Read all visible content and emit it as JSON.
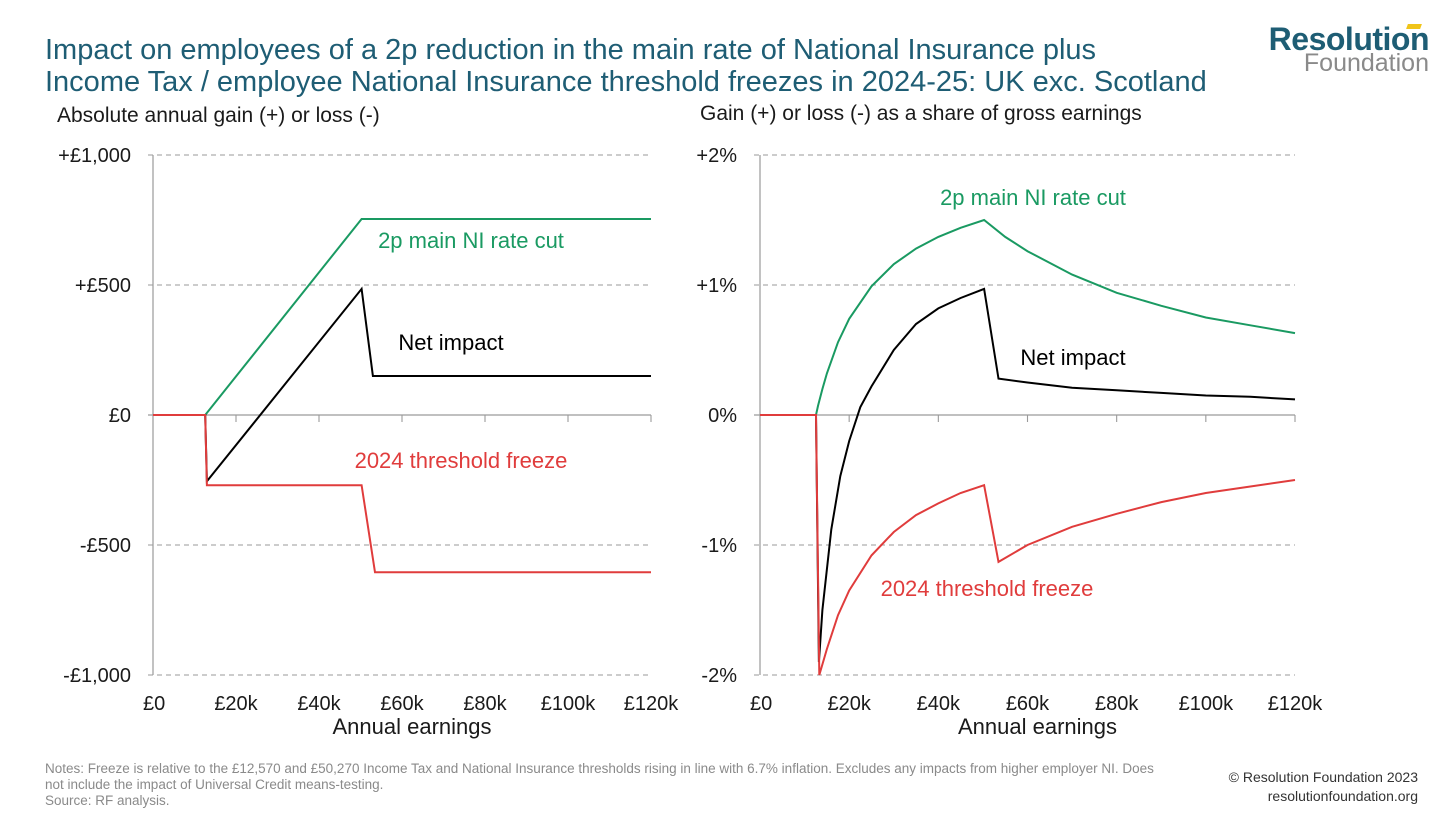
{
  "title_line1": "Impact on employees of a 2p reduction in the main rate of National Insurance plus",
  "title_line2": "Income Tax / employee National Insurance threshold freezes in 2024-25: UK exc. Scotland",
  "logo": {
    "line1": "Resolution",
    "line2": "Foundation",
    "accent_color": "#f0c419"
  },
  "colors": {
    "green": "#1a9a62",
    "black": "#000000",
    "red": "#e03c3c",
    "title": "#1e5d74",
    "grid": "#9a9a9a"
  },
  "footnote": {
    "notes": "Notes: Freeze is relative to the £12,570 and £50,270 Income Tax and National Insurance thresholds rising in line with 6.7% inflation. Excludes any impacts from higher employer NI. Does not include the impact of Universal Credit means-testing.",
    "source": "Source: RF analysis."
  },
  "credit": {
    "line1": "© Resolution Foundation 2023",
    "line2": "resolutionfoundation.org"
  },
  "chart_data": [
    {
      "type": "line",
      "subtitle": "Absolute annual gain (+) or loss (-)",
      "xlabel": "Annual earnings",
      "ylabel": "",
      "xlim": [
        0,
        120000
      ],
      "ylim": [
        -1000,
        1000
      ],
      "xticks": [
        0,
        20000,
        40000,
        60000,
        80000,
        100000,
        120000
      ],
      "xtick_labels": [
        "£0",
        "£20k",
        "£40k",
        "£60k",
        "£80k",
        "£100k",
        "£120k"
      ],
      "yticks": [
        1000,
        500,
        0,
        -500,
        -1000
      ],
      "ytick_labels": [
        "+£1,000",
        "+£500",
        "£0",
        "-£500",
        "-£1,000"
      ],
      "grid": "horizontal dashed",
      "series": [
        {
          "name": "2p main NI rate cut",
          "color_key": "green",
          "points": [
            [
              0,
              0
            ],
            [
              12570,
              0
            ],
            [
              50270,
              754
            ],
            [
              120000,
              754
            ]
          ]
        },
        {
          "name": "Net impact",
          "color_key": "black",
          "points": [
            [
              0,
              0
            ],
            [
              12570,
              0
            ],
            [
              13000,
              -255
            ],
            [
              50270,
              485
            ],
            [
              53000,
              150
            ],
            [
              120000,
              150
            ]
          ]
        },
        {
          "name": "2024 threshold freeze",
          "color_key": "red",
          "points": [
            [
              0,
              0
            ],
            [
              12570,
              0
            ],
            [
              13000,
              -270
            ],
            [
              50270,
              -270
            ],
            [
              53500,
              -605
            ],
            [
              120000,
              -605
            ]
          ]
        }
      ]
    },
    {
      "type": "line",
      "subtitle": "Gain (+) or loss (-) as a share of gross earnings",
      "xlabel": "Annual earnings",
      "ylabel": "",
      "xlim": [
        0,
        120000
      ],
      "ylim": [
        -2,
        2
      ],
      "xticks": [
        0,
        20000,
        40000,
        60000,
        80000,
        100000,
        120000
      ],
      "xtick_labels": [
        "£0",
        "£20k",
        "£40k",
        "£60k",
        "£80k",
        "£100k",
        "£120k"
      ],
      "yticks": [
        2,
        1,
        0,
        -1,
        -2
      ],
      "ytick_labels": [
        "+2%",
        "+1%",
        "0%",
        "-1%",
        "-2%"
      ],
      "grid": "horizontal dashed",
      "series": [
        {
          "name": "2p main NI rate cut",
          "color_key": "green",
          "points": [
            [
              0,
              0
            ],
            [
              12570,
              0
            ],
            [
              13000,
              0.07
            ],
            [
              14000,
              0.2
            ],
            [
              15000,
              0.32
            ],
            [
              17500,
              0.56
            ],
            [
              20000,
              0.74
            ],
            [
              25000,
              0.99
            ],
            [
              30000,
              1.16
            ],
            [
              35000,
              1.28
            ],
            [
              40000,
              1.37
            ],
            [
              45000,
              1.44
            ],
            [
              50270,
              1.5
            ],
            [
              55000,
              1.37
            ],
            [
              60000,
              1.26
            ],
            [
              70000,
              1.08
            ],
            [
              80000,
              0.94
            ],
            [
              90000,
              0.84
            ],
            [
              100000,
              0.75
            ],
            [
              110000,
              0.69
            ],
            [
              120000,
              0.63
            ]
          ]
        },
        {
          "name": "Net impact",
          "color_key": "black",
          "points": [
            [
              0,
              0
            ],
            [
              12570,
              0
            ],
            [
              13200,
              -1.9
            ],
            [
              14000,
              -1.5
            ],
            [
              16000,
              -0.88
            ],
            [
              18000,
              -0.47
            ],
            [
              20000,
              -0.2
            ],
            [
              22500,
              0.06
            ],
            [
              25000,
              0.22
            ],
            [
              30000,
              0.5
            ],
            [
              35000,
              0.7
            ],
            [
              40000,
              0.82
            ],
            [
              45000,
              0.9
            ],
            [
              50270,
              0.97
            ],
            [
              53500,
              0.28
            ],
            [
              60000,
              0.25
            ],
            [
              70000,
              0.21
            ],
            [
              80000,
              0.19
            ],
            [
              90000,
              0.17
            ],
            [
              100000,
              0.15
            ],
            [
              110000,
              0.14
            ],
            [
              120000,
              0.12
            ]
          ]
        },
        {
          "name": "2024 threshold freeze",
          "color_key": "red",
          "points": [
            [
              0,
              0
            ],
            [
              12570,
              0
            ],
            [
              13300,
              -2.0
            ],
            [
              15000,
              -1.8
            ],
            [
              17500,
              -1.54
            ],
            [
              20000,
              -1.35
            ],
            [
              25000,
              -1.08
            ],
            [
              30000,
              -0.9
            ],
            [
              35000,
              -0.77
            ],
            [
              40000,
              -0.68
            ],
            [
              45000,
              -0.6
            ],
            [
              50270,
              -0.54
            ],
            [
              53500,
              -1.13
            ],
            [
              60000,
              -1.0
            ],
            [
              70000,
              -0.86
            ],
            [
              80000,
              -0.76
            ],
            [
              90000,
              -0.67
            ],
            [
              100000,
              -0.6
            ],
            [
              110000,
              -0.55
            ],
            [
              120000,
              -0.5
            ]
          ]
        }
      ]
    }
  ]
}
